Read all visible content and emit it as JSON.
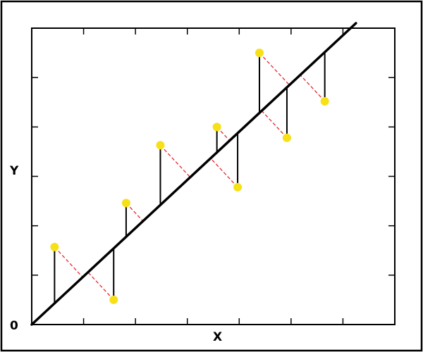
{
  "chart_data": {
    "type": "scatter",
    "title": "",
    "xlabel": "X",
    "ylabel": "Y",
    "origin_label": "0",
    "xlim": [
      0,
      7
    ],
    "ylim": [
      0,
      6
    ],
    "grid": false,
    "x_ticks": [
      1,
      2,
      3,
      4,
      5,
      6
    ],
    "y_ticks": [
      1,
      2,
      3,
      4,
      5,
      6
    ],
    "regression_line": {
      "x": [
        0,
        6.25
      ],
      "y": [
        0,
        6.1
      ]
    },
    "points": [
      {
        "x": 0.44,
        "y": 1.57
      },
      {
        "x": 1.58,
        "y": 0.5
      },
      {
        "x": 1.82,
        "y": 2.46
      },
      {
        "x": 2.48,
        "y": 3.63
      },
      {
        "x": 3.57,
        "y": 4.0
      },
      {
        "x": 3.97,
        "y": 2.78
      },
      {
        "x": 4.39,
        "y": 5.5
      },
      {
        "x": 4.92,
        "y": 3.78
      },
      {
        "x": 5.65,
        "y": 4.52
      }
    ],
    "colors": {
      "points": "#f7e017",
      "regression_line": "#000000",
      "residual_lines": "#000000",
      "perpendicular_lines": "#e8262d",
      "frame": "#000000"
    }
  }
}
